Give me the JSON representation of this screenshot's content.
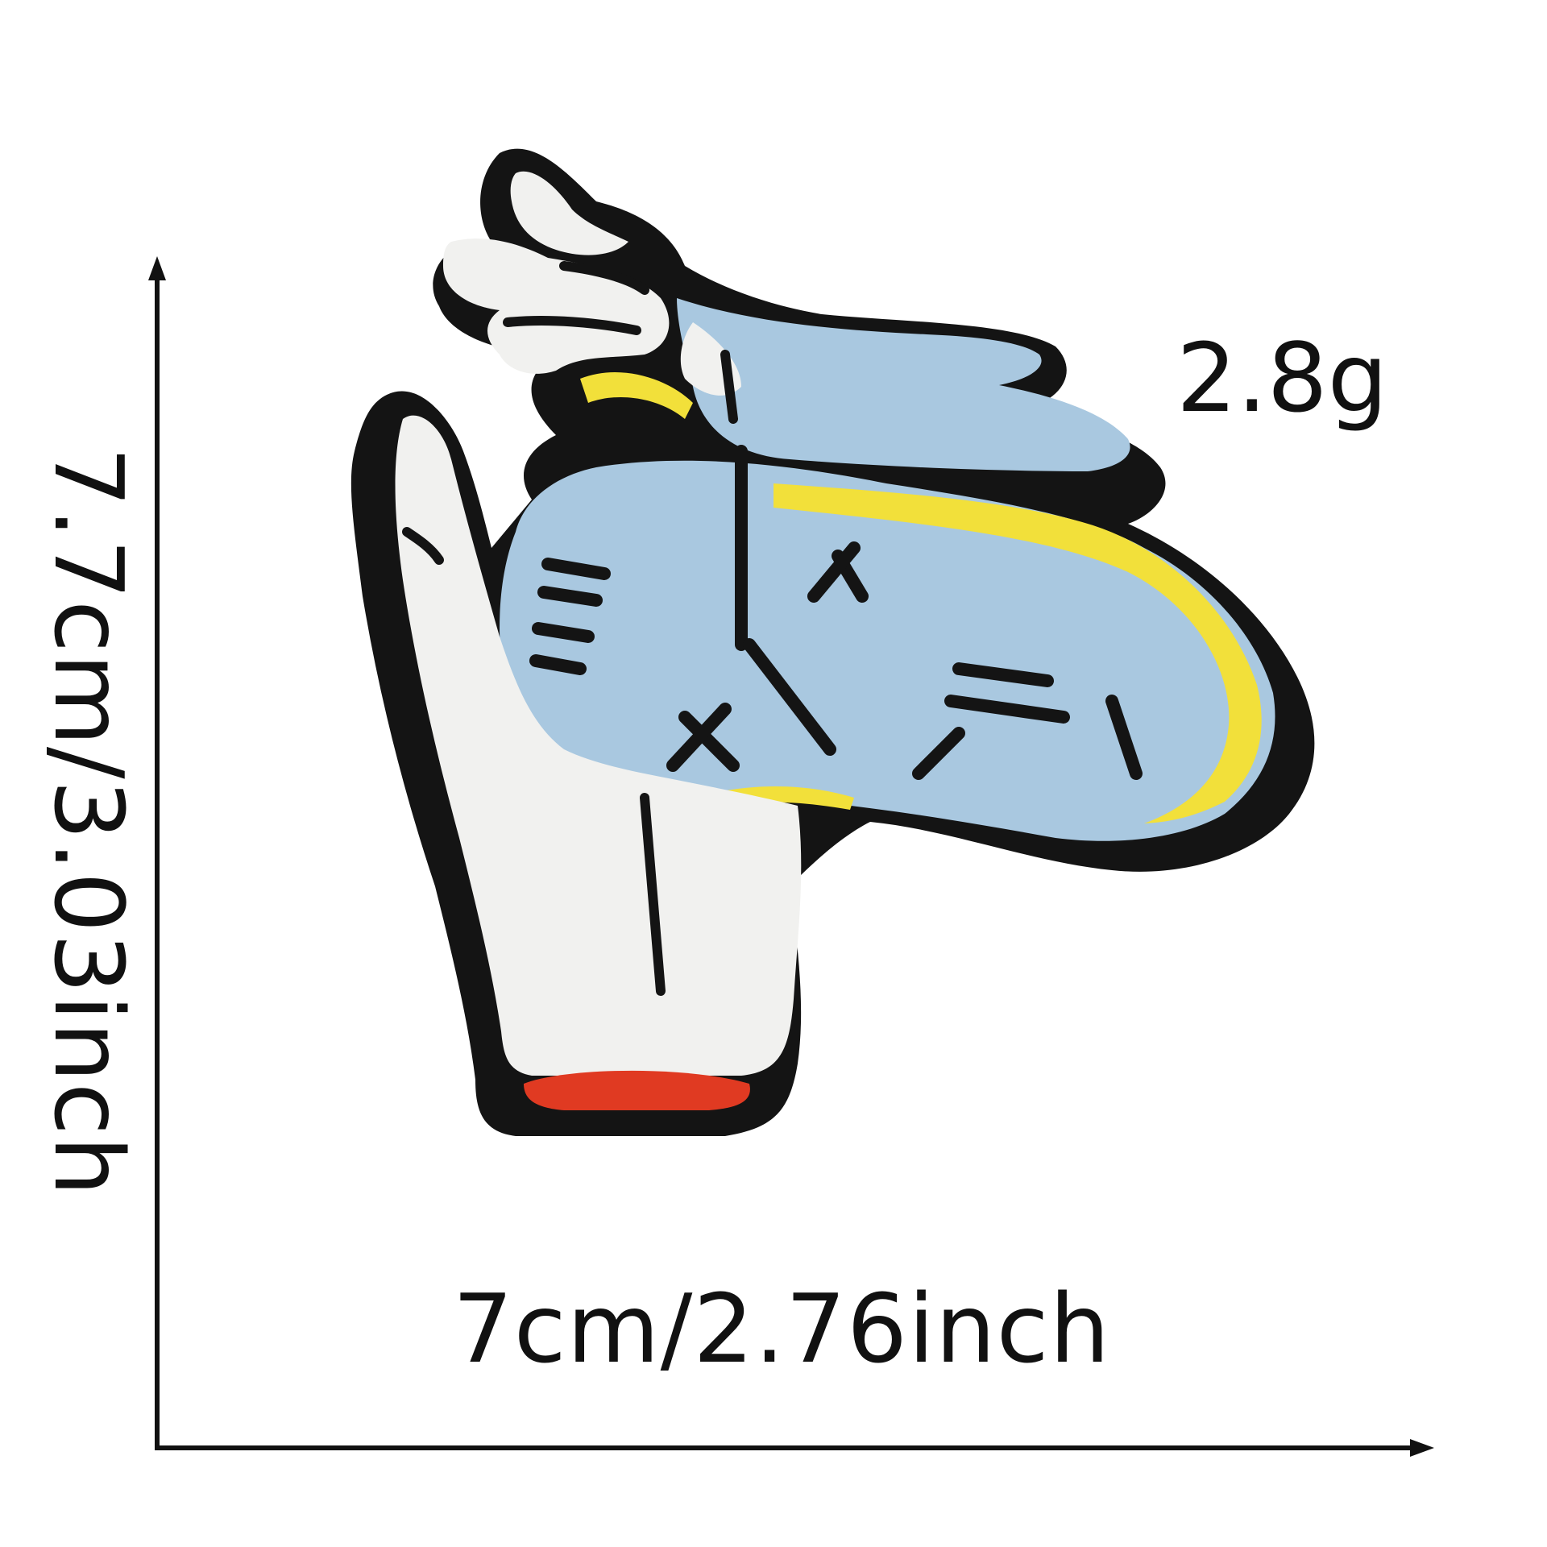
{
  "product": {
    "weight_label": "2.8g",
    "width_label": "7cm/2.76inch",
    "height_label": "7.7cm/3.03inch"
  },
  "patch_colors": {
    "border": "#141414",
    "skin": "#f1f1ef",
    "clock": "#a9c8e0",
    "gold": "#f2e03a",
    "cuff": "#e03a22"
  }
}
